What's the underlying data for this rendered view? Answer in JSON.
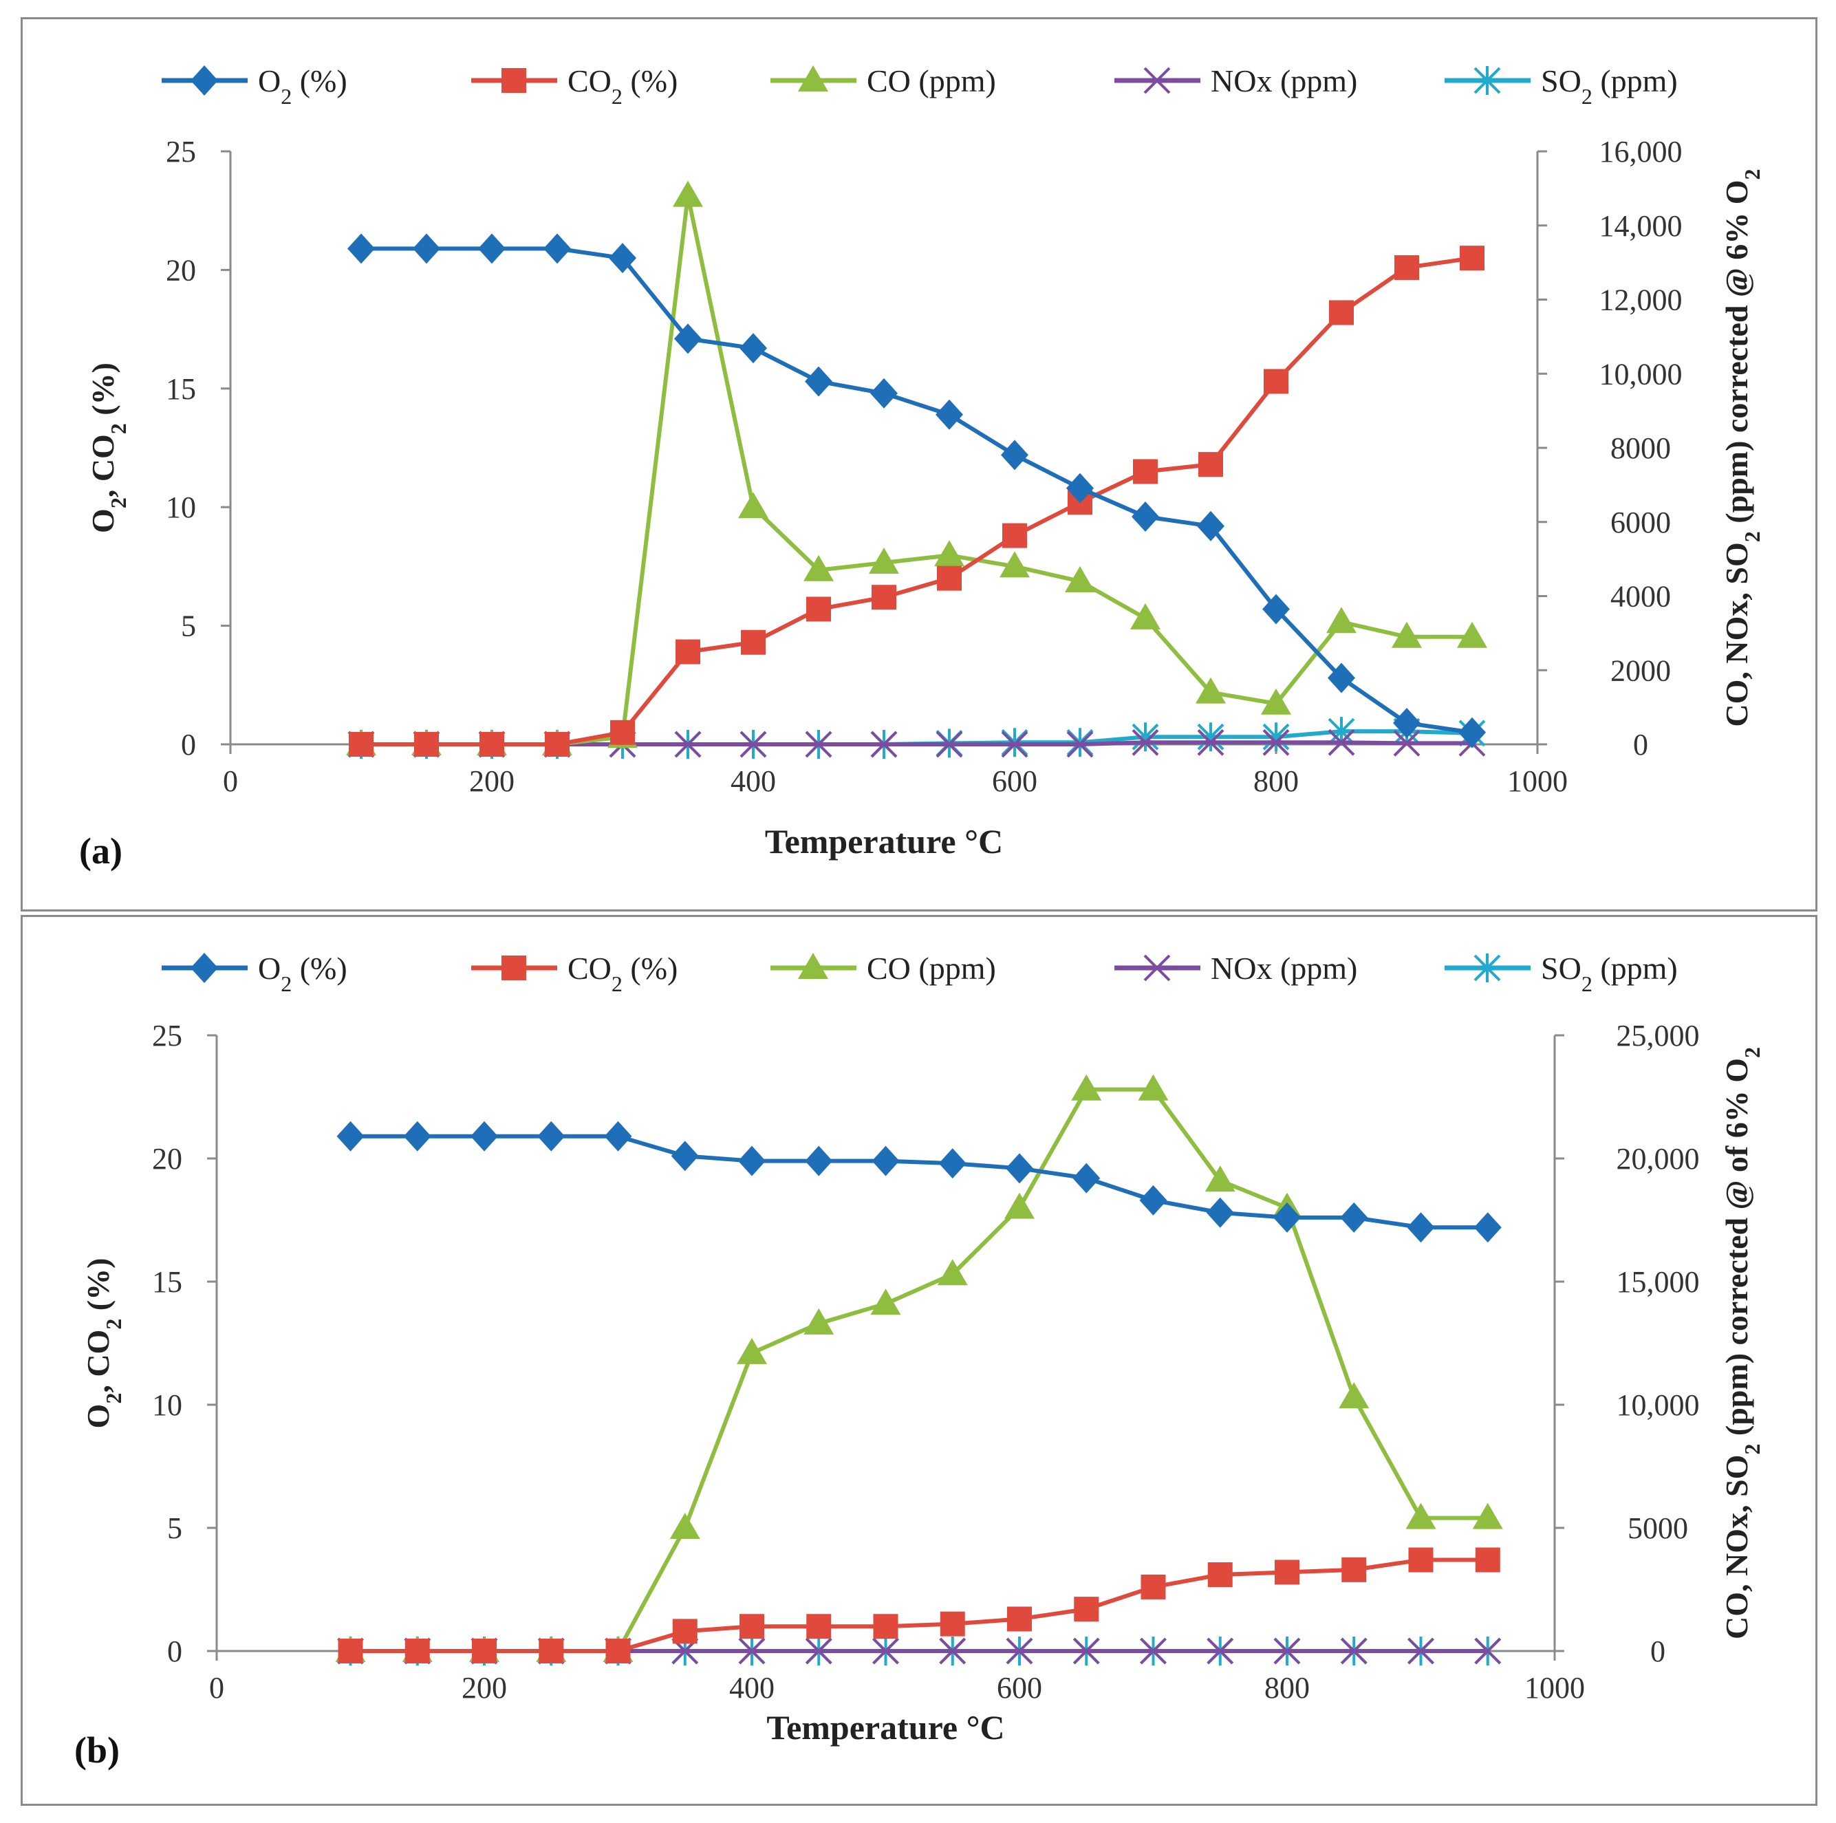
{
  "colors": {
    "o2": "#1f6fb8",
    "co2": "#e04a3c",
    "co": "#8fbd3f",
    "nox": "#7b4ca0",
    "so2": "#22aacc",
    "axis": "#8a8a8a"
  },
  "chart_data": [
    {
      "type": "line",
      "panel_label": "(a)",
      "xlabel": "Temperature °C",
      "ylabel_left": {
        "base": "O",
        "sub1": "2",
        "mid": ", CO",
        "sub2": "2",
        "end": " (%)"
      },
      "ylabel_right": {
        "pre": "CO, NOx, SO",
        "sub1": "2",
        "mid": " (ppm) corrected @ 6% O",
        "sub2": "2"
      },
      "xlim": [
        0,
        1000
      ],
      "xticks": [
        0,
        200,
        400,
        600,
        800,
        1000
      ],
      "xtick_labels": [
        "0",
        "200",
        "400",
        "600",
        "800",
        "1000"
      ],
      "ylim_left": [
        0,
        25
      ],
      "yticks_left": [
        0,
        5,
        10,
        15,
        20,
        25
      ],
      "ytick_labels_left": [
        "0",
        "5",
        "10",
        "15",
        "20",
        "25"
      ],
      "ylim_right": [
        0,
        16000
      ],
      "yticks_right": [
        0,
        2000,
        4000,
        6000,
        8000,
        10000,
        12000,
        14000,
        16000
      ],
      "ytick_labels_right": [
        "0",
        "2000",
        "4000",
        "6000",
        "8000",
        "10,000",
        "12,000",
        "14,000",
        "16,000"
      ],
      "legend": [
        {
          "key": "o2",
          "label": "O",
          "sub": "2",
          "suffix": " (%)"
        },
        {
          "key": "co2",
          "label": "CO",
          "sub": "2",
          "suffix": " (%)"
        },
        {
          "key": "co",
          "label": "CO (ppm)",
          "sub": "",
          "suffix": ""
        },
        {
          "key": "nox",
          "label": "NOx (ppm)",
          "sub": "",
          "suffix": ""
        },
        {
          "key": "so2",
          "label": "SO",
          "sub": "2",
          "suffix": " (ppm)"
        }
      ],
      "x": [
        100,
        150,
        200,
        250,
        300,
        350,
        400,
        450,
        500,
        550,
        600,
        650,
        700,
        750,
        800,
        850,
        900,
        950
      ],
      "series": [
        {
          "key": "o2",
          "name": "O2 (%)",
          "axis": "left",
          "marker": "diamond",
          "values": [
            20.9,
            20.9,
            20.9,
            20.9,
            20.5,
            17.1,
            16.7,
            15.3,
            14.8,
            13.9,
            12.2,
            10.8,
            9.6,
            9.2,
            5.7,
            2.8,
            0.9,
            0.5
          ]
        },
        {
          "key": "co2",
          "name": "CO2 (%)",
          "axis": "left",
          "marker": "square",
          "values": [
            0,
            0,
            0,
            0,
            0.5,
            3.9,
            4.3,
            5.7,
            6.2,
            7.0,
            8.8,
            10.2,
            11.5,
            11.8,
            15.3,
            18.2,
            20.1,
            20.5
          ]
        },
        {
          "key": "co",
          "name": "CO (ppm)",
          "axis": "right",
          "marker": "triangle",
          "values": [
            0,
            0,
            0,
            0,
            200,
            14800,
            6400,
            4700,
            4900,
            5100,
            4800,
            4400,
            3400,
            1400,
            1100,
            3300,
            2900,
            2900
          ]
        },
        {
          "key": "nox",
          "name": "NOx (ppm)",
          "axis": "right",
          "marker": "x",
          "values": [
            0,
            0,
            0,
            0,
            0,
            0,
            0,
            0,
            0,
            0,
            0,
            0,
            50,
            50,
            50,
            50,
            30,
            30
          ]
        },
        {
          "key": "so2",
          "name": "SO2 (ppm)",
          "axis": "right",
          "marker": "star",
          "values": [
            0,
            0,
            0,
            0,
            0,
            0,
            0,
            0,
            0,
            30,
            50,
            50,
            200,
            200,
            200,
            350,
            350,
            300
          ]
        }
      ]
    },
    {
      "type": "line",
      "panel_label": "(b)",
      "xlabel": "Temperature °C",
      "ylabel_left": {
        "base": "O",
        "sub1": "2",
        "mid": ", CO",
        "sub2": "2",
        "end": " (%)"
      },
      "ylabel_right": {
        "pre": "CO, NOx, SO",
        "sub1": "2",
        "mid": " (ppm) corrected @ of 6% O",
        "sub2": "2"
      },
      "xlim": [
        0,
        1000
      ],
      "xticks": [
        0,
        200,
        400,
        600,
        800,
        1000
      ],
      "xtick_labels": [
        "0",
        "200",
        "400",
        "600",
        "800",
        "1000"
      ],
      "ylim_left": [
        0,
        25
      ],
      "yticks_left": [
        0,
        5,
        10,
        15,
        20,
        25
      ],
      "ytick_labels_left": [
        "0",
        "5",
        "10",
        "15",
        "20",
        "25"
      ],
      "ylim_right": [
        0,
        25000
      ],
      "yticks_right": [
        0,
        5000,
        10000,
        15000,
        20000,
        25000
      ],
      "ytick_labels_right": [
        "0",
        "5000",
        "10,000",
        "15,000",
        "20,000",
        "25,000"
      ],
      "legend": [
        {
          "key": "o2",
          "label": "O",
          "sub": "2",
          "suffix": " (%)"
        },
        {
          "key": "co2",
          "label": "CO",
          "sub": "2",
          "suffix": "  (%)"
        },
        {
          "key": "co",
          "label": "CO (ppm)",
          "sub": "",
          "suffix": ""
        },
        {
          "key": "nox",
          "label": "NOx (ppm)",
          "sub": "",
          "suffix": ""
        },
        {
          "key": "so2",
          "label": "SO",
          "sub": "2",
          "suffix": " (ppm)"
        }
      ],
      "x": [
        100,
        150,
        200,
        250,
        300,
        350,
        400,
        450,
        500,
        550,
        600,
        650,
        700,
        750,
        800,
        850,
        900,
        950
      ],
      "series": [
        {
          "key": "o2",
          "name": "O2 (%)",
          "axis": "left",
          "marker": "diamond",
          "values": [
            20.9,
            20.9,
            20.9,
            20.9,
            20.9,
            20.1,
            19.9,
            19.9,
            19.9,
            19.8,
            19.6,
            19.2,
            18.3,
            17.8,
            17.6,
            17.6,
            17.2,
            17.2
          ]
        },
        {
          "key": "co2",
          "name": "CO2 (%)",
          "axis": "left",
          "marker": "square",
          "values": [
            0,
            0,
            0,
            0,
            0,
            0.8,
            1.0,
            1.0,
            1.0,
            1.1,
            1.3,
            1.7,
            2.6,
            3.1,
            3.2,
            3.3,
            3.7,
            3.7
          ]
        },
        {
          "key": "co",
          "name": "CO (ppm)",
          "axis": "right",
          "marker": "triangle",
          "values": [
            0,
            0,
            0,
            0,
            0,
            5000,
            12100,
            13300,
            14100,
            15300,
            18000,
            22800,
            22800,
            19100,
            18000,
            10300,
            5400,
            5400
          ]
        },
        {
          "key": "nox",
          "name": "NOx (ppm)",
          "axis": "right",
          "marker": "x",
          "values": [
            0,
            0,
            0,
            0,
            0,
            0,
            0,
            0,
            0,
            0,
            0,
            0,
            0,
            0,
            0,
            0,
            0,
            0
          ]
        },
        {
          "key": "so2",
          "name": "SO2 (ppm)",
          "axis": "right",
          "marker": "star",
          "values": [
            0,
            0,
            0,
            0,
            0,
            0,
            0,
            0,
            0,
            0,
            0,
            0,
            0,
            0,
            0,
            0,
            0,
            0
          ]
        }
      ]
    }
  ]
}
